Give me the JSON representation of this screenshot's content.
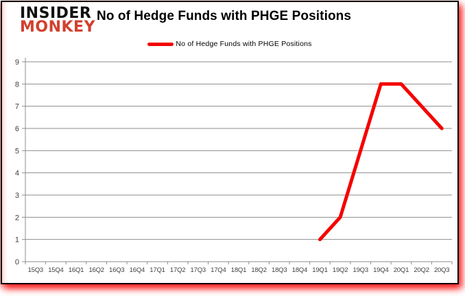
{
  "header": {
    "logo_line1": "INSIDER",
    "logo_line2": "MONKEY",
    "title": "No of Hedge Funds with PHGE Positions"
  },
  "legend": {
    "label": "No of Hedge Funds with PHGE Positions"
  },
  "colors": {
    "line": "#f40000",
    "logo_red": "#d2402e",
    "grid": "#8e8e8e",
    "tick_text": "#3f3f3f",
    "border": "#000000",
    "glow": "#ff0000",
    "background": "#ffffff"
  },
  "chart_data": {
    "type": "line",
    "title": "No of Hedge Funds with PHGE Positions",
    "categories": [
      "15Q3",
      "15Q4",
      "16Q1",
      "16Q2",
      "16Q3",
      "16Q4",
      "17Q1",
      "17Q2",
      "17Q3",
      "17Q4",
      "18Q1",
      "18Q2",
      "18Q3",
      "18Q4",
      "19Q1",
      "19Q2",
      "19Q3",
      "19Q4",
      "20Q1",
      "20Q2",
      "20Q3"
    ],
    "series": [
      {
        "name": "No of Hedge Funds with PHGE Positions",
        "values": [
          null,
          null,
          null,
          null,
          null,
          null,
          null,
          null,
          null,
          null,
          null,
          null,
          null,
          null,
          1,
          2,
          5,
          8,
          8,
          7,
          6
        ]
      }
    ],
    "ylim": [
      0,
      9
    ],
    "yticks": [
      0,
      1,
      2,
      3,
      4,
      5,
      6,
      7,
      8,
      9
    ],
    "grid": true,
    "legend_position": "top"
  }
}
